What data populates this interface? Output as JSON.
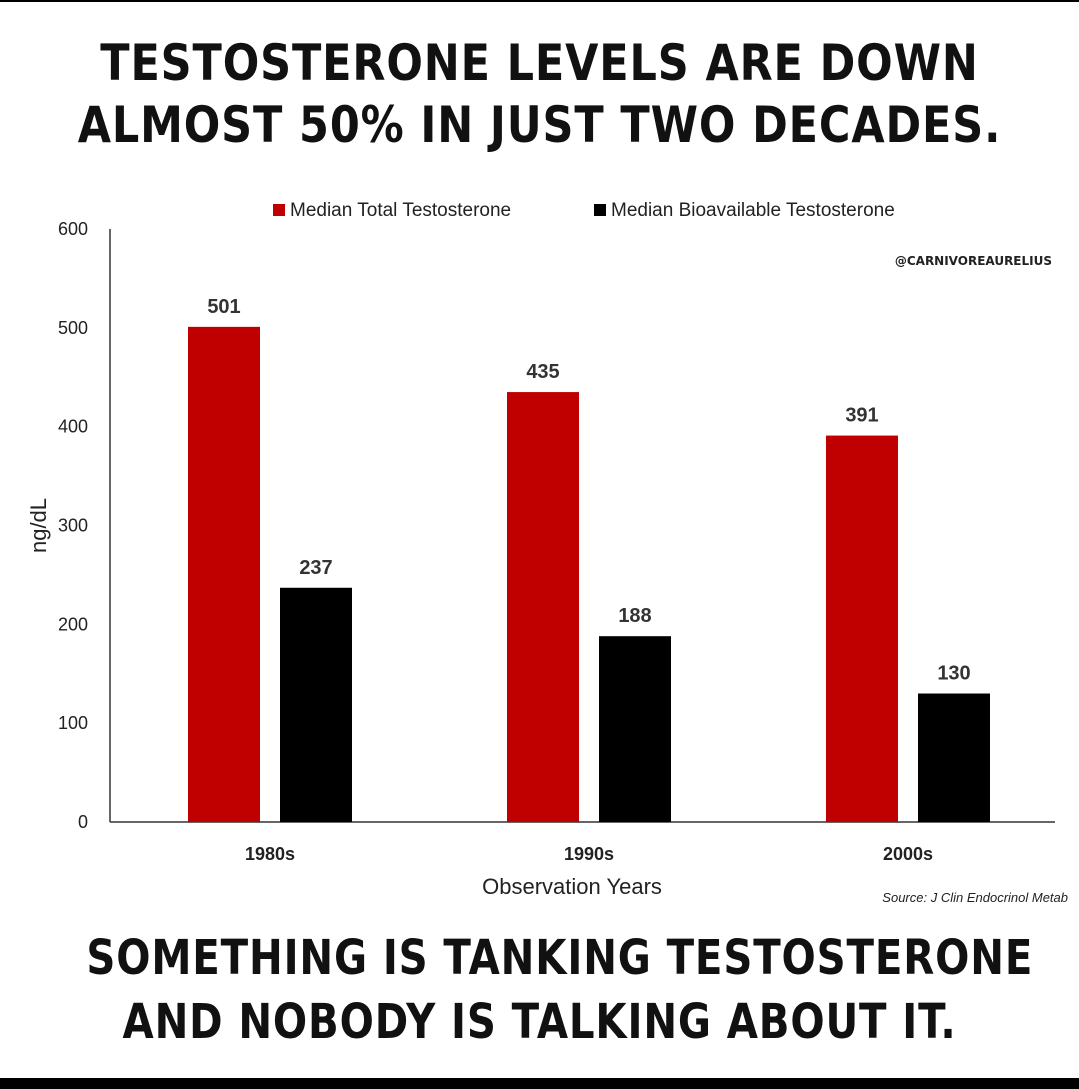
{
  "headline_top": [
    "TESTOSTERONE LEVELS ARE DOWN",
    "ALMOST 50% IN JUST TWO DECADES."
  ],
  "headline_bottom": [
    "SOMETHING IS TANKING TESTOSTERONE",
    "AND NOBODY IS TALKING ABOUT IT."
  ],
  "handle": "@CARNIVOREAURELIUS",
  "source": "Source: J Clin Endocrinol Metab",
  "colors": {
    "total": "#c00000",
    "bioavailable": "#000000"
  },
  "chart_data": {
    "type": "bar",
    "categories": [
      "1980s",
      "1990s",
      "2000s"
    ],
    "series": [
      {
        "name": "Median Total Testosterone",
        "values": [
          501,
          435,
          391
        ]
      },
      {
        "name": "Median Bioavailable Testosterone",
        "values": [
          237,
          188,
          130
        ]
      }
    ],
    "xlabel": "Observation Years",
    "ylabel": "ng/dL",
    "ylim": [
      0,
      600
    ],
    "yticks": [
      0,
      100,
      200,
      300,
      400,
      500,
      600
    ],
    "grid": false,
    "legend": "top",
    "data_labels": true
  }
}
